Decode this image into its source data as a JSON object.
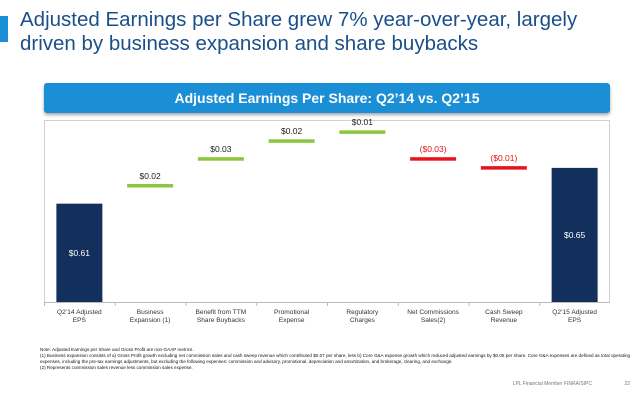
{
  "slide": {
    "title": "Adjusted Earnings per Share grew 7% year-over-year, largely driven by business expansion and share buybacks",
    "banner": "Adjusted Earnings Per Share:  Q2’14 vs. Q2’15",
    "notes": [
      "Note: Adjusted Earnings per Share and Gross Profit are non-GAAP metrics.",
      "(1) Business expansion consists of a) Gross Profit growth excluding net commission sales and cash sweep revenue which contributed $0.07 per share, less b) Core G&A expense growth which reduced adjusted earnings by $0.05 per share. Core G&A expenses are defined as total operating expenses, including the pre-tax earnings adjustments, but excluding the following expenses: commission and advisory, promotional, depreciation and amortization, and brokerage, clearing, and exchange.",
      "(2) Represents commission sales revenue less commission sales expense."
    ],
    "footer": "LPL Financial  Member FINRA/SIPC",
    "page_number": "22"
  },
  "colors": {
    "accent": "#1b8fd6",
    "title": "#1b4f8a",
    "total_bar": "#13305c",
    "increase": "#8cc63f",
    "decrease": "#e8141b"
  },
  "chart_data": {
    "type": "bar",
    "subtype": "waterfall",
    "title": "Adjusted Earnings Per Share:  Q2’14 vs. Q2’15",
    "categories": [
      "Q2’14 Adjusted EPS",
      "Business Expansion (1)",
      "Benefit from TTM Share Buybacks",
      "Promotional Expense",
      "Regulatory Charges",
      "Net Commissions Sales(2)",
      "Cash Sweep Revenue",
      "Q2’15 Adjusted EPS"
    ],
    "values": [
      0.61,
      0.02,
      0.03,
      0.02,
      0.01,
      -0.03,
      -0.01,
      0.65
    ],
    "labels": [
      "$0.61",
      "$0.02",
      "$0.03",
      "$0.02",
      "$0.01",
      "($0.03)",
      "($0.01)",
      "$0.65"
    ],
    "kinds": [
      "total",
      "delta",
      "delta",
      "delta",
      "delta",
      "delta",
      "delta",
      "total"
    ],
    "xlabel": "",
    "ylabel": "",
    "grid": false
  }
}
